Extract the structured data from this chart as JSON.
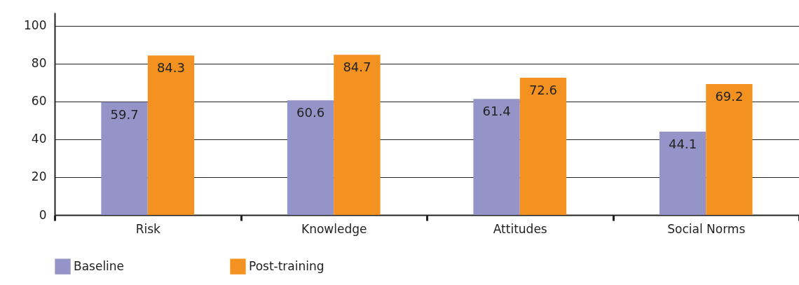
{
  "chart_data": {
    "type": "bar",
    "categories": [
      "Risk",
      "Knowledge",
      "Attitudes",
      "Social Norms"
    ],
    "series": [
      {
        "name": "Baseline",
        "color": "#9594c8",
        "values": [
          59.7,
          60.6,
          61.4,
          44.1
        ]
      },
      {
        "name": "Post-training",
        "color": "#f39220",
        "values": [
          84.3,
          84.7,
          72.6,
          69.2
        ]
      }
    ],
    "ylim": [
      0,
      107
    ],
    "yticks": [
      0,
      20,
      40,
      60,
      80,
      100
    ],
    "grid": "y",
    "legend": "bottom",
    "data_labels": true
  }
}
